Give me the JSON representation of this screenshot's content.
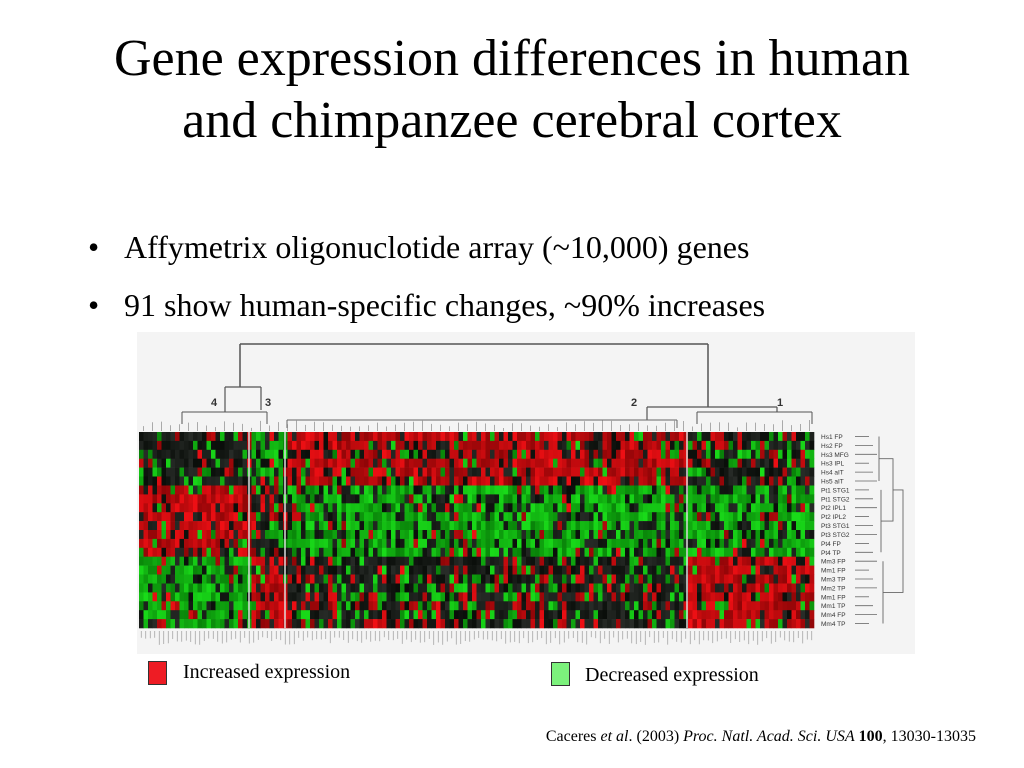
{
  "slide": {
    "title_line1": "Gene expression differences in human",
    "title_line2": "and chimpanzee cerebral cortex",
    "bullets": [
      "Affymetrix oligonuclotide array (~10,000) genes",
      "91 show human-specific changes, ~90% increases"
    ]
  },
  "figure": {
    "cluster_labels": [
      "4",
      "3",
      "2",
      "1"
    ],
    "sample_labels": [
      "Hs1 FP",
      "Hs2 FP",
      "Hs3 MFG",
      "Hs3 IPL",
      "Hs4 aIT",
      "Hs5 aIT",
      "Pt1 STG1",
      "Pt1 STG2",
      "Pt2 IPL1",
      "Pt2 IPL2",
      "Pt3 STG1",
      "Pt3 STG2",
      "Pt4 FP",
      "Pt4 TP",
      "Mm3 FP",
      "Mm1 FP",
      "Mm3 TP",
      "Mm2 TP",
      "Mm1 FP",
      "Mm1 TP",
      "Mm4 FP",
      "Mm4 TP"
    ],
    "colors": {
      "increase": "#e8202a",
      "decrease": "#4cc84c",
      "neutral": "#101010"
    }
  },
  "legend": {
    "increased_label": "Increased expression",
    "decreased_label": "Decreased expression",
    "increased_color": "#ee1c24",
    "decreased_color": "#7cf27c"
  },
  "citation": {
    "authors": "Caceres ",
    "etal": "et al",
    "year": ". (2003) ",
    "journal": "Proc. Natl. Acad. Sci. USA",
    "volume": "100",
    "pages": ", 13030-13035"
  }
}
